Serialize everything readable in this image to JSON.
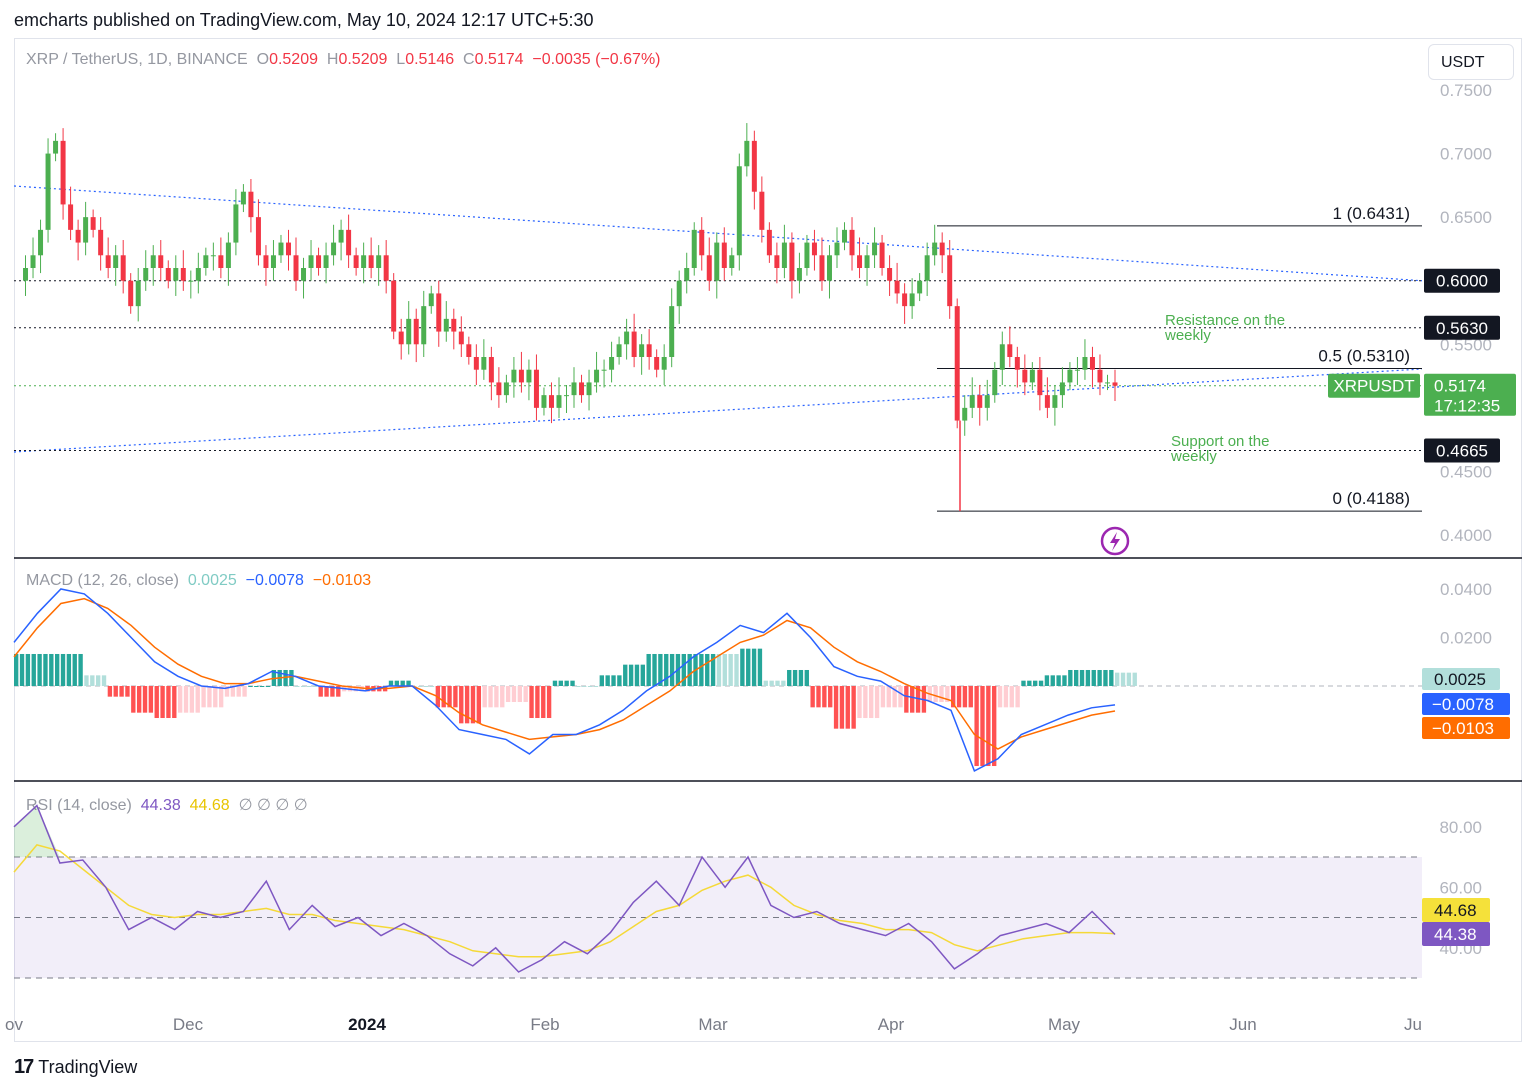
{
  "header": {
    "publisher": "emcharts published on TradingView.com, May 10, 2024 12:17 UTC+5:30"
  },
  "currency_button": "USDT",
  "main_legend": {
    "symbol": "XRP / TetherUS, 1D, BINANCE",
    "o_label": "O",
    "o_value": "0.5209",
    "h_label": "H",
    "h_value": "0.5209",
    "l_label": "L",
    "l_value": "0.5146",
    "c_label": "C",
    "c_value": "0.5174",
    "change": "−0.0035 (−0.67%)"
  },
  "macd_legend": {
    "name": "MACD (12, 26, close)",
    "hist": "0.0025",
    "macd": "−0.0078",
    "signal": "−0.0103"
  },
  "rsi_legend": {
    "name": "RSI (14, close)",
    "rsi": "44.38",
    "ma": "44.68",
    "empties": "∅ ∅ ∅ ∅"
  },
  "footer": {
    "brand": "TradingView"
  },
  "colors": {
    "up": "#22ab94",
    "down": "#f23645",
    "candle_up": "#4caf50",
    "macd": "#2962ff",
    "signal": "#ff6d00",
    "rsi": "#7e57c2",
    "rsi_ma": "#f5d938",
    "trend": "#2962ff"
  },
  "chart_data": [
    {
      "type": "candlestick",
      "title": "XRP / TetherUS, 1D, BINANCE",
      "ylim": [
        0.4,
        0.75
      ],
      "y_ticks": [
        "0.7500",
        "0.7000",
        "0.6500",
        "0.5500",
        "0.4500",
        "0.4000"
      ],
      "x_labels": [
        "ov",
        "Dec",
        "2024",
        "Feb",
        "Mar",
        "Apr",
        "May",
        "Jun",
        "Ju"
      ],
      "price_path": [
        0.6,
        0.61,
        0.62,
        0.64,
        0.7,
        0.71,
        0.66,
        0.64,
        0.63,
        0.65,
        0.64,
        0.62,
        0.61,
        0.62,
        0.6,
        0.58,
        0.6,
        0.61,
        0.62,
        0.61,
        0.6,
        0.61,
        0.6,
        0.6,
        0.61,
        0.62,
        0.62,
        0.61,
        0.63,
        0.66,
        0.67,
        0.65,
        0.62,
        0.61,
        0.62,
        0.63,
        0.62,
        0.6,
        0.61,
        0.62,
        0.61,
        0.62,
        0.63,
        0.64,
        0.62,
        0.61,
        0.62,
        0.61,
        0.62,
        0.6,
        0.56,
        0.55,
        0.57,
        0.55,
        0.58,
        0.59,
        0.56,
        0.57,
        0.56,
        0.55,
        0.54,
        0.53,
        0.54,
        0.52,
        0.51,
        0.52,
        0.53,
        0.52,
        0.53,
        0.5,
        0.51,
        0.5,
        0.51,
        0.51,
        0.52,
        0.51,
        0.52,
        0.53,
        0.53,
        0.54,
        0.55,
        0.56,
        0.54,
        0.55,
        0.54,
        0.53,
        0.54,
        0.58,
        0.6,
        0.61,
        0.64,
        0.62,
        0.6,
        0.63,
        0.61,
        0.62,
        0.69,
        0.71,
        0.67,
        0.64,
        0.62,
        0.61,
        0.63,
        0.6,
        0.61,
        0.63,
        0.62,
        0.6,
        0.62,
        0.63,
        0.64,
        0.62,
        0.61,
        0.62,
        0.63,
        0.61,
        0.6,
        0.59,
        0.58,
        0.59,
        0.6,
        0.62,
        0.63,
        0.62,
        0.58,
        0.49,
        0.5,
        0.51,
        0.5,
        0.51,
        0.53,
        0.55,
        0.54,
        0.53,
        0.52,
        0.53,
        0.51,
        0.5,
        0.51,
        0.52,
        0.53,
        0.53,
        0.54,
        0.53,
        0.52,
        0.52,
        0.5174
      ],
      "annotations": [
        {
          "text": "1 (0.6431)",
          "value": 0.6431
        },
        {
          "text": "0.5 (0.5310)",
          "value": 0.531
        },
        {
          "text": "0 (0.4188)",
          "value": 0.4188
        },
        {
          "text": "Resistance on the weekly",
          "value": 0.563
        },
        {
          "text": "Support on the weekly",
          "value": 0.4665
        }
      ],
      "price_labels": [
        {
          "text": "0.6000",
          "value": 0.6
        },
        {
          "text": "0.5630",
          "value": 0.563
        },
        {
          "text": "0.4665",
          "value": 0.4665
        }
      ],
      "current": {
        "symbol": "XRPUSDT",
        "price": "0.5174",
        "countdown": "17:12:35"
      }
    },
    {
      "type": "line",
      "title": "MACD (12, 26, close)",
      "ylim": [
        -0.045,
        0.045
      ],
      "y_ticks": [
        "0.0400",
        "0.0200"
      ],
      "series": [
        {
          "name": "MACD",
          "values": [
            0.018,
            0.03,
            0.04,
            0.038,
            0.03,
            0.02,
            0.01,
            0.004,
            0.0,
            -0.001,
            0.001,
            0.006,
            0.004,
            0.0,
            -0.001,
            -0.002,
            0.0,
            0.0,
            -0.008,
            -0.018,
            -0.02,
            -0.022,
            -0.028,
            -0.02,
            -0.02,
            -0.016,
            -0.01,
            -0.002,
            0.004,
            0.012,
            0.018,
            0.025,
            0.022,
            0.03,
            0.02,
            0.008,
            0.004,
            0.002,
            -0.004,
            -0.006,
            -0.01,
            -0.035,
            -0.03,
            -0.02,
            -0.016,
            -0.012,
            -0.009,
            -0.0078
          ]
        },
        {
          "name": "Signal",
          "values": [
            0.012,
            0.024,
            0.034,
            0.036,
            0.032,
            0.025,
            0.016,
            0.009,
            0.004,
            0.001,
            0.001,
            0.003,
            0.004,
            0.002,
            0.0,
            -0.001,
            -0.001,
            0.0,
            -0.004,
            -0.011,
            -0.016,
            -0.019,
            -0.022,
            -0.021,
            -0.02,
            -0.018,
            -0.014,
            -0.008,
            -0.002,
            0.006,
            0.012,
            0.018,
            0.021,
            0.027,
            0.024,
            0.016,
            0.01,
            0.006,
            0.001,
            -0.003,
            -0.006,
            -0.02,
            -0.026,
            -0.021,
            -0.018,
            -0.015,
            -0.012,
            -0.0103
          ]
        }
      ],
      "current": {
        "hist": "0.0025",
        "macd": "−0.0078",
        "signal": "−0.0103"
      }
    },
    {
      "type": "line",
      "title": "RSI (14, close)",
      "ylim": [
        30,
        90
      ],
      "y_ticks": [
        "80.00",
        "60.00",
        "40.00"
      ],
      "bands": [
        70,
        50,
        30
      ],
      "series": [
        {
          "name": "RSI",
          "values": [
            80,
            87,
            68,
            69,
            60,
            46,
            50,
            46,
            52,
            50,
            52,
            62,
            46,
            54,
            47,
            50,
            44,
            48,
            44,
            38,
            34,
            40,
            32,
            36,
            42,
            38,
            45,
            55,
            62,
            54,
            70,
            60,
            70,
            54,
            50,
            52,
            48,
            46,
            44,
            48,
            42,
            33,
            38,
            44,
            46,
            48,
            45,
            52,
            44.38
          ]
        },
        {
          "name": "MA",
          "values": [
            65,
            74,
            72,
            66,
            60,
            54,
            51,
            50,
            51,
            51,
            52,
            53,
            51,
            51,
            49,
            48,
            47,
            46,
            44,
            42,
            39,
            38,
            37,
            37,
            38,
            39,
            42,
            47,
            52,
            54,
            59,
            62,
            64,
            60,
            54,
            51,
            49,
            48,
            46,
            46,
            45,
            41,
            39,
            41,
            43,
            44,
            45,
            45,
            44.68
          ]
        }
      ],
      "current": {
        "rsi": "44.38",
        "ma": "44.68"
      }
    }
  ]
}
